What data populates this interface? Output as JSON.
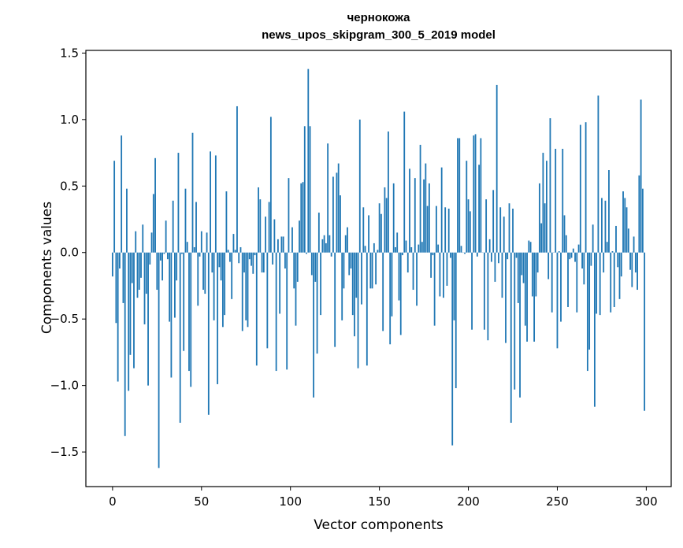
{
  "chart_data": {
    "type": "bar",
    "title": "чернокожа",
    "subtitle": "news_upos_skipgram_300_5_2019 model",
    "xlabel": "Vector components",
    "ylabel": "Components values",
    "xlim": [
      -15,
      314
    ],
    "ylim": [
      -1.76,
      1.52
    ],
    "xticks": [
      0,
      50,
      100,
      150,
      200,
      250,
      300
    ],
    "yticks": [
      -1.5,
      -1.0,
      -0.5,
      0.0,
      0.5,
      1.0,
      1.5
    ],
    "ytick_labels": [
      "−1.5",
      "−1.0",
      "−0.5",
      "0.0",
      "0.5",
      "1.0",
      "1.5"
    ],
    "grid": false,
    "color": "#1f77b4",
    "values": [
      -0.18,
      0.69,
      -0.53,
      -0.97,
      -0.12,
      0.88,
      -0.38,
      -1.38,
      0.48,
      -1.04,
      -0.77,
      -0.23,
      -0.87,
      0.16,
      -0.34,
      -0.28,
      -0.19,
      0.21,
      -0.54,
      -0.31,
      -1.0,
      -0.09,
      0.15,
      0.44,
      0.71,
      -0.28,
      -1.62,
      -0.06,
      -0.21,
      -0.01,
      0.24,
      -0.05,
      -0.52,
      -0.94,
      0.39,
      -0.49,
      -0.21,
      0.75,
      -1.28,
      -0.01,
      -0.74,
      0.48,
      0.08,
      -0.89,
      -1.01,
      0.9,
      0.04,
      0.38,
      -0.4,
      -0.03,
      0.16,
      -0.28,
      -0.31,
      0.15,
      -1.22,
      0.76,
      -0.15,
      -0.51,
      0.73,
      -0.99,
      -0.11,
      -0.21,
      -0.56,
      -0.47,
      0.46,
      0.02,
      -0.07,
      -0.35,
      0.14,
      0.02,
      1.1,
      -0.08,
      0.04,
      -0.59,
      -0.15,
      -0.51,
      -0.56,
      -0.05,
      -0.1,
      -0.16,
      -0.02,
      -0.85,
      0.49,
      0.4,
      -0.15,
      -0.15,
      0.27,
      -0.72,
      0.38,
      1.02,
      -0.09,
      0.25,
      -0.89,
      0.1,
      -0.46,
      0.12,
      0.12,
      -0.12,
      -0.88,
      0.56,
      0.0,
      0.19,
      -0.27,
      -0.55,
      -0.22,
      0.24,
      0.52,
      0.53,
      0.95,
      -0.01,
      1.38,
      0.95,
      -0.17,
      -1.09,
      -0.22,
      -0.76,
      0.3,
      -0.47,
      0.1,
      0.13,
      0.07,
      0.82,
      0.13,
      -0.03,
      0.57,
      -0.71,
      0.6,
      0.67,
      0.43,
      -0.51,
      -0.27,
      0.13,
      0.19,
      -0.17,
      -0.12,
      -0.47,
      -0.63,
      -0.34,
      -0.87,
      1.0,
      -0.39,
      0.34,
      0.05,
      -0.85,
      0.28,
      -0.27,
      -0.27,
      0.07,
      -0.24,
      0.02,
      0.37,
      0.29,
      -0.59,
      0.49,
      0.41,
      0.91,
      -0.69,
      -0.48,
      0.52,
      0.04,
      0.15,
      -0.36,
      -0.62,
      -0.02,
      1.06,
      0.09,
      -0.15,
      0.63,
      0.04,
      -0.28,
      0.56,
      -0.4,
      0.06,
      0.81,
      0.08,
      0.55,
      0.67,
      0.35,
      0.52,
      -0.19,
      -0.02,
      -0.55,
      0.35,
      0.06,
      -0.33,
      0.64,
      -0.34,
      0.34,
      -0.25,
      0.33,
      -0.04,
      -1.45,
      -0.51,
      -1.02,
      0.86,
      0.86,
      0.05,
      0.0,
      -0.01,
      0.69,
      0.4,
      0.31,
      -0.58,
      0.88,
      0.89,
      -0.03,
      0.66,
      0.86,
      0.0,
      -0.58,
      0.4,
      -0.66,
      0.1,
      -0.07,
      0.47,
      -0.22,
      1.26,
      -0.08,
      0.34,
      -0.34,
      0.27,
      -0.68,
      -0.05,
      0.37,
      -1.28,
      0.33,
      -1.03,
      -0.04,
      -0.38,
      -1.09,
      -0.17,
      -0.23,
      -0.55,
      -0.67,
      0.09,
      0.08,
      -0.33,
      -0.67,
      -0.33,
      -0.15,
      0.52,
      0.22,
      0.75,
      0.37,
      0.69,
      -0.2,
      1.01,
      -0.45,
      0.0,
      0.78,
      -0.72,
      0.01,
      -0.52,
      0.78,
      0.28,
      0.13,
      -0.41,
      -0.05,
      -0.04,
      0.03,
      -0.07,
      -0.45,
      0.06,
      0.96,
      -0.12,
      -0.24,
      0.98,
      -0.89,
      -0.73,
      -0.1,
      0.21,
      -1.16,
      -0.46,
      1.18,
      -0.47,
      0.41,
      -0.15,
      0.39,
      0.08,
      0.62,
      -0.45,
      0.01,
      -0.41,
      0.2,
      -0.11,
      -0.35,
      -0.18,
      0.46,
      0.41,
      0.34,
      0.18,
      -0.13,
      -0.26,
      0.12,
      -0.15,
      -0.28,
      0.58,
      1.15,
      0.48,
      -1.19
    ]
  }
}
